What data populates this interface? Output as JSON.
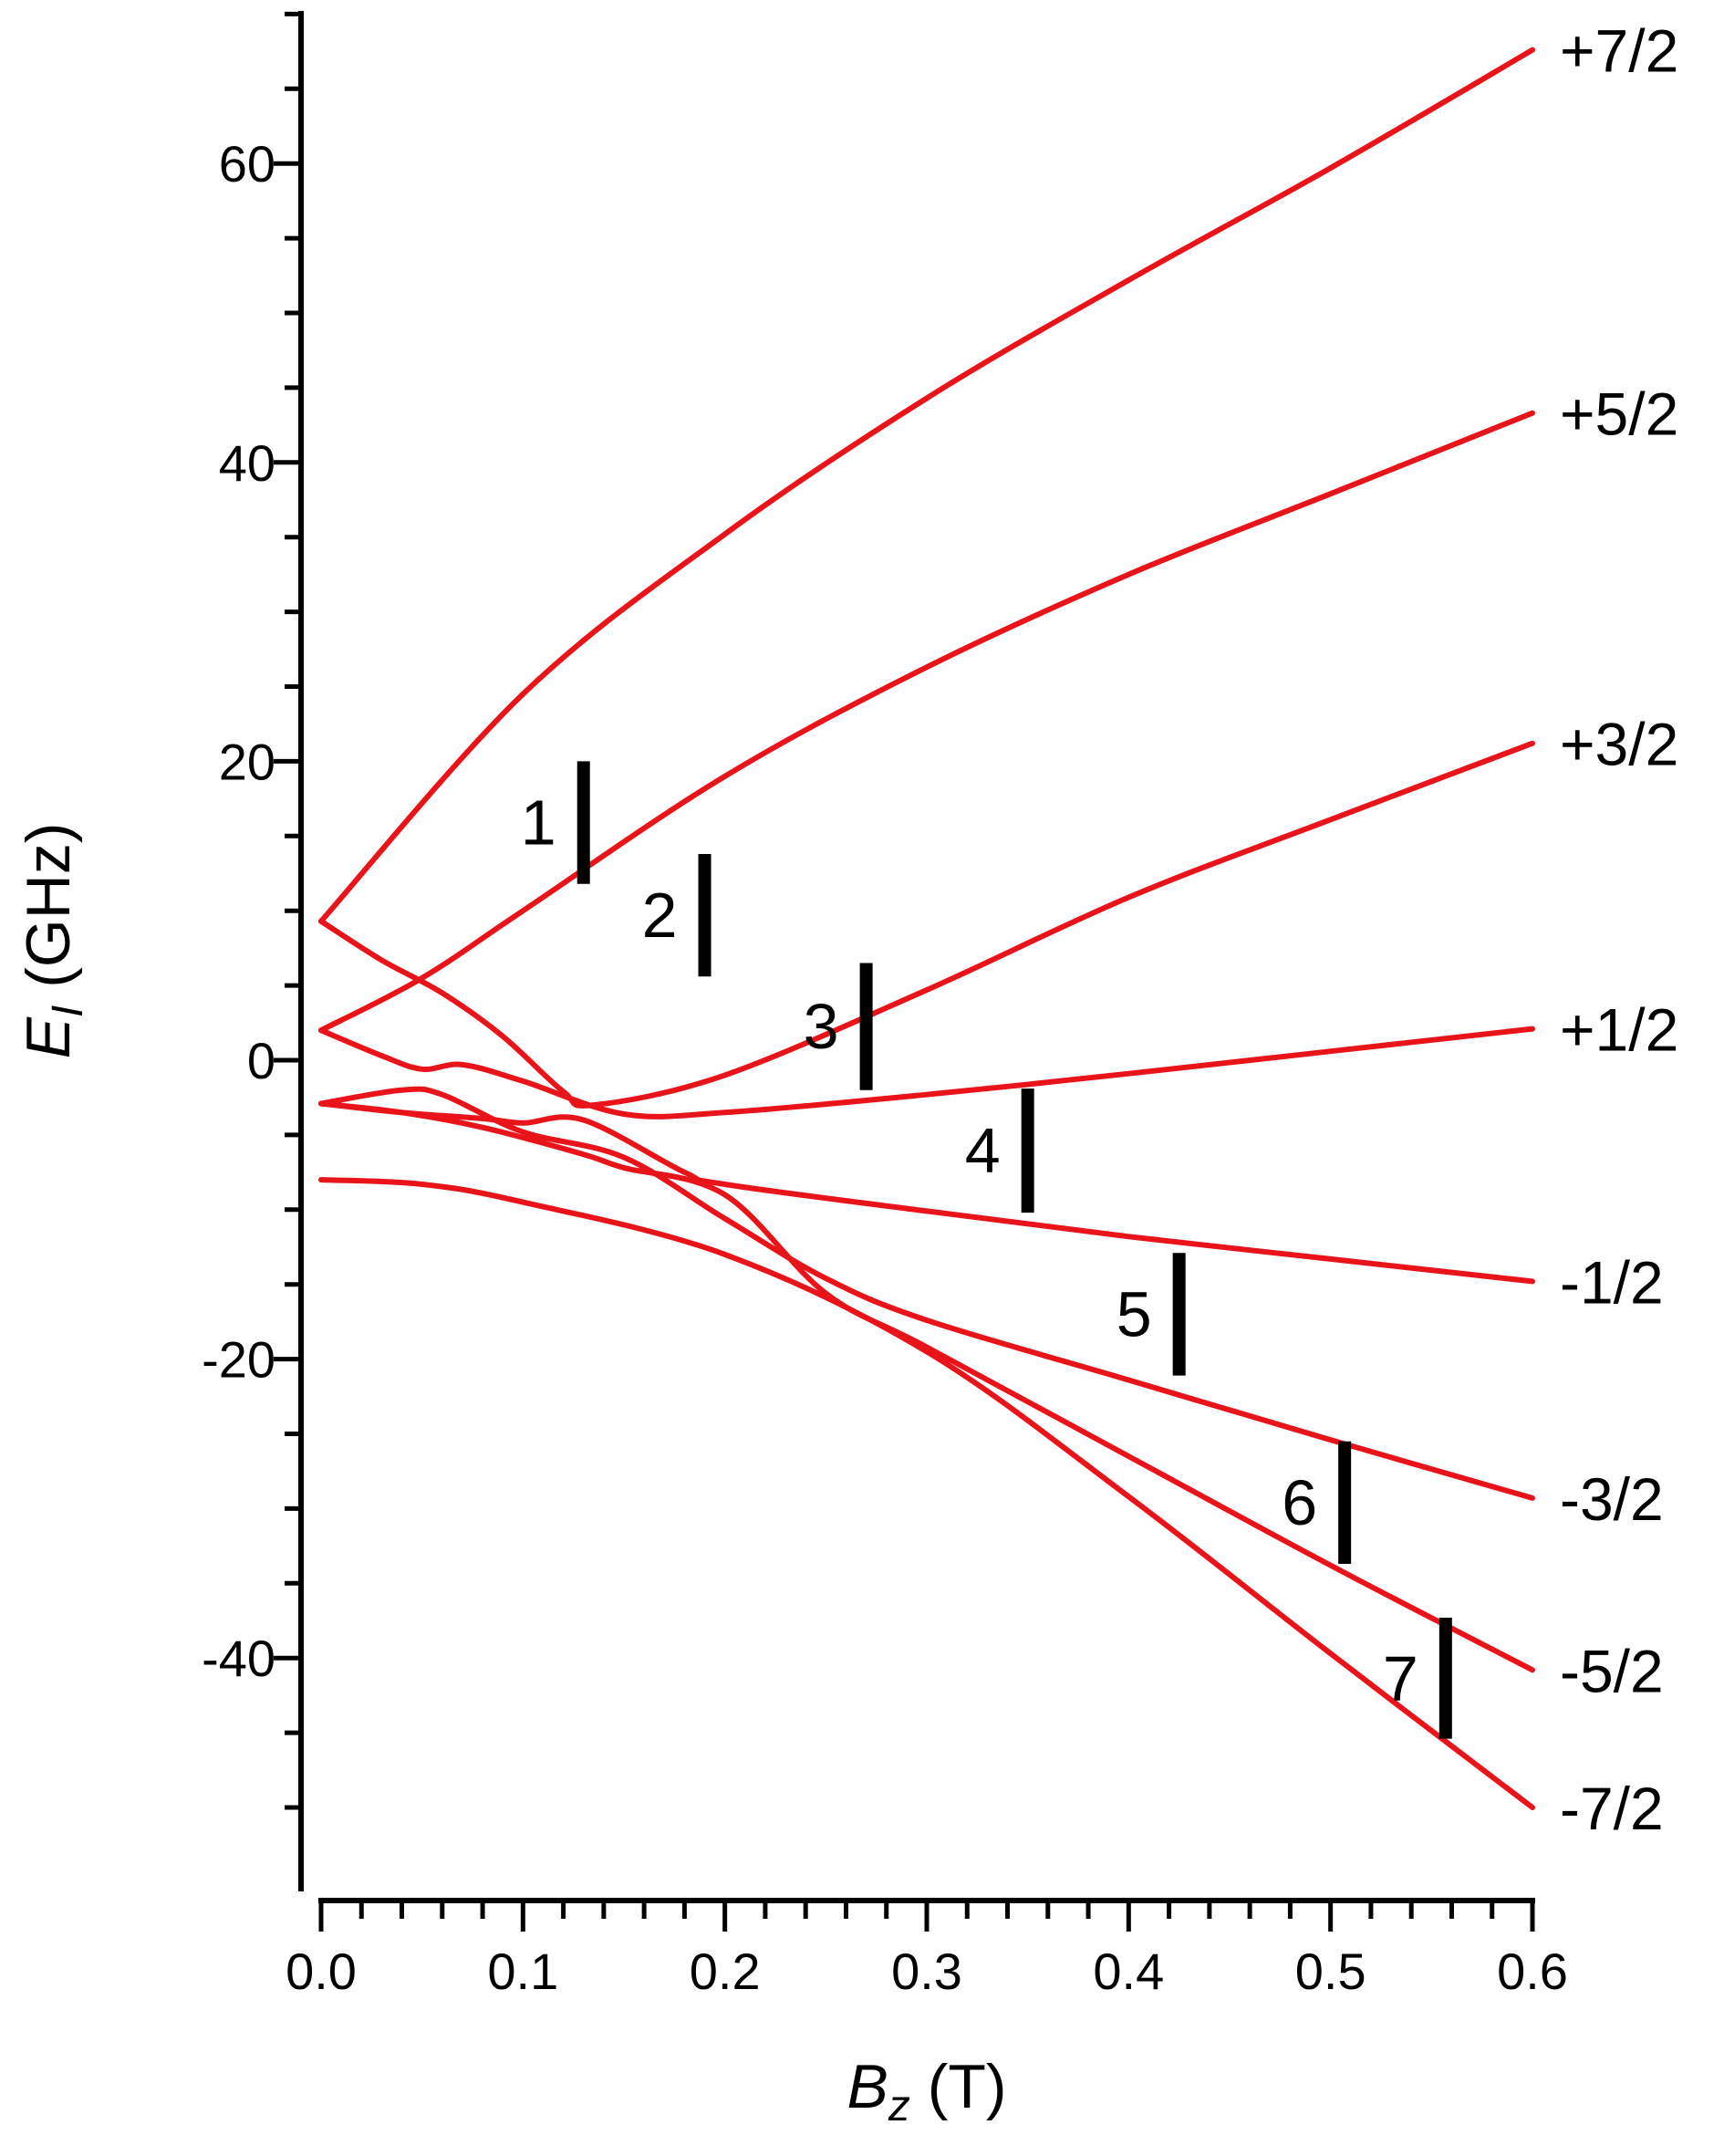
{
  "chart_data": {
    "type": "line",
    "title": "",
    "xlabel": {
      "var": "B",
      "sub": "z",
      "unit": " (T)"
    },
    "ylabel": {
      "var": "E",
      "sub": "I",
      "unit": " (GHz)"
    },
    "xlim": [
      0,
      0.6
    ],
    "ylim": [
      -55,
      70
    ],
    "x_ticks": [
      0.0,
      0.1,
      0.2,
      0.3,
      0.4,
      0.5,
      0.6
    ],
    "x_tick_labels": [
      "0.0",
      "0.1",
      "0.2",
      "0.3",
      "0.4",
      "0.5",
      "0.6"
    ],
    "y_ticks": [
      -40,
      -20,
      0,
      20,
      40,
      60
    ],
    "y_tick_labels": [
      "-40",
      "-20",
      "0",
      "20",
      "40",
      "60"
    ],
    "grid": false,
    "line_color": "#e8141a",
    "marker_color": "#000000",
    "series": [
      {
        "label": "+7/2",
        "points": [
          [
            0,
            9.3
          ],
          [
            0.1,
            24.5
          ],
          [
            0.2,
            35.2
          ],
          [
            0.3,
            44.3
          ],
          [
            0.4,
            52.2
          ],
          [
            0.5,
            59.7
          ],
          [
            0.6,
            67.6
          ]
        ]
      },
      {
        "label": "+5/2",
        "points": [
          [
            0,
            2.0
          ],
          [
            0.05,
            5.5
          ],
          [
            0.1,
            10.0
          ],
          [
            0.2,
            19.0
          ],
          [
            0.3,
            26.3
          ],
          [
            0.4,
            32.5
          ],
          [
            0.5,
            37.9
          ],
          [
            0.6,
            43.3
          ]
        ]
      },
      {
        "label": "+3/2",
        "points": [
          [
            0,
            9.3
          ],
          [
            0.03,
            6.7
          ],
          [
            0.06,
            4.5
          ],
          [
            0.09,
            1.6
          ],
          [
            0.12,
            -2.1
          ],
          [
            0.135,
            -3.0
          ],
          [
            0.2,
            -1.0
          ],
          [
            0.3,
            4.7
          ],
          [
            0.4,
            10.9
          ],
          [
            0.5,
            16.1
          ],
          [
            0.6,
            21.2
          ]
        ]
      },
      {
        "label": "+1/2",
        "points": [
          [
            0,
            2.0
          ],
          [
            0.03,
            0.3
          ],
          [
            0.05,
            -0.6
          ],
          [
            0.07,
            -0.3
          ],
          [
            0.1,
            -1.4
          ],
          [
            0.15,
            -3.6
          ],
          [
            0.2,
            -3.5
          ],
          [
            0.3,
            -2.3
          ],
          [
            0.4,
            -0.9
          ],
          [
            0.5,
            0.6
          ],
          [
            0.6,
            2.1
          ]
        ]
      },
      {
        "label": "-1/2",
        "points": [
          [
            0,
            -2.9
          ],
          [
            0.04,
            -3.5
          ],
          [
            0.08,
            -3.9
          ],
          [
            0.1,
            -4.2
          ],
          [
            0.13,
            -4.0
          ],
          [
            0.18,
            -7.5
          ],
          [
            0.2,
            -8.3
          ],
          [
            0.3,
            -10.1
          ],
          [
            0.4,
            -11.8
          ],
          [
            0.5,
            -13.3
          ],
          [
            0.6,
            -14.8
          ]
        ]
      },
      {
        "label": "-3/2",
        "points": [
          [
            0,
            -2.9
          ],
          [
            0.04,
            -2.0
          ],
          [
            0.06,
            -2.3
          ],
          [
            0.1,
            -4.8
          ],
          [
            0.15,
            -6.5
          ],
          [
            0.2,
            -10.6
          ],
          [
            0.25,
            -14.6
          ],
          [
            0.3,
            -17.4
          ],
          [
            0.4,
            -21.4
          ],
          [
            0.5,
            -25.4
          ],
          [
            0.6,
            -29.3
          ]
        ]
      },
      {
        "label": "-5/2",
        "points": [
          [
            0,
            -2.9
          ],
          [
            0.04,
            -3.5
          ],
          [
            0.08,
            -4.5
          ],
          [
            0.13,
            -6.3
          ],
          [
            0.15,
            -7.2
          ],
          [
            0.2,
            -9.0
          ],
          [
            0.25,
            -15.6
          ],
          [
            0.3,
            -19.2
          ],
          [
            0.4,
            -26.5
          ],
          [
            0.5,
            -33.8
          ],
          [
            0.6,
            -40.8
          ]
        ]
      },
      {
        "label": "-7/2",
        "points": [
          [
            0,
            -8.0
          ],
          [
            0.05,
            -8.3
          ],
          [
            0.1,
            -9.5
          ],
          [
            0.2,
            -13.0
          ],
          [
            0.3,
            -19.5
          ],
          [
            0.4,
            -29.2
          ],
          [
            0.5,
            -39.7
          ],
          [
            0.6,
            -50.0
          ]
        ]
      }
    ],
    "transitions": [
      {
        "label": "1",
        "x": 0.13,
        "y1": 11.8,
        "y2": 20.0
      },
      {
        "label": "2",
        "x": 0.19,
        "y1": 5.6,
        "y2": 13.8
      },
      {
        "label": "3",
        "x": 0.27,
        "y1": -2.0,
        "y2": 6.5
      },
      {
        "label": "4",
        "x": 0.35,
        "y1": -10.2,
        "y2": -1.9
      },
      {
        "label": "5",
        "x": 0.425,
        "y1": -21.1,
        "y2": -12.9
      },
      {
        "label": "6",
        "x": 0.507,
        "y1": -33.7,
        "y2": -25.5
      },
      {
        "label": "7",
        "x": 0.557,
        "y1": -45.4,
        "y2": -37.3
      }
    ]
  }
}
